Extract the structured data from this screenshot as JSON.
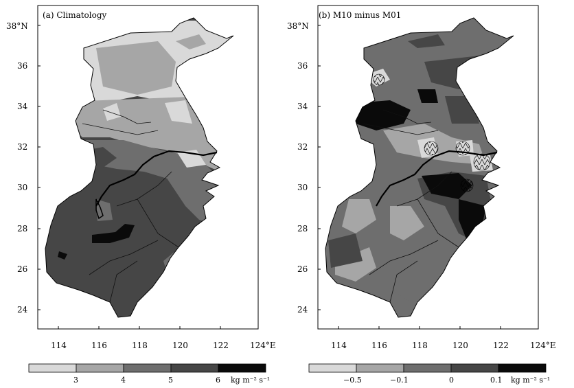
{
  "panels": [
    {
      "title": "(a)  Climatology",
      "colorbar": {
        "labels": [
          "3",
          "4",
          "5",
          "6"
        ],
        "unit": "kg m⁻² s⁻¹",
        "colors": [
          "#d9d9d9",
          "#a6a6a6",
          "#6e6e6e",
          "#464646",
          "#0a0a0a"
        ]
      }
    },
    {
      "title": "(b)  M10  minus  M01",
      "colorbar": {
        "labels": [
          "−0.5",
          "−0.1",
          "0",
          "0.1"
        ],
        "unit": "kg m⁻² s⁻¹",
        "colors": [
          "#d9d9d9",
          "#a6a6a6",
          "#6e6e6e",
          "#464646",
          "#0a0a0a"
        ]
      }
    }
  ],
  "axes": {
    "lon_labels": [
      "114",
      "116",
      "118",
      "120",
      "122",
      "124°E"
    ],
    "lat_labels": [
      "38°N",
      "36",
      "34",
      "32",
      "30",
      "28",
      "26",
      "24"
    ]
  }
}
